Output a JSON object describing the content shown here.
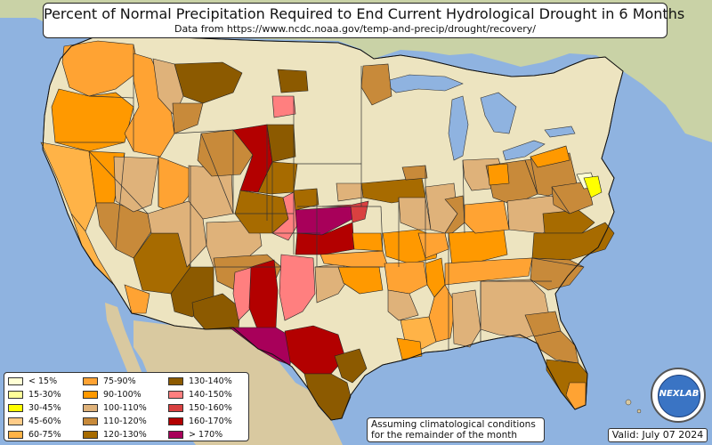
{
  "title": "Percent of Normal Precipitation Required to End Current Hydrological Drought in 6 Months",
  "subtitle": "Data from https://www.ncdc.noaa.gov/temp-and-precip/drought/recovery/",
  "legend": {
    "items": [
      {
        "label": "< 15%",
        "color": "#ffffd4"
      },
      {
        "label": "15-30%",
        "color": "#ffff99"
      },
      {
        "label": "30-45%",
        "color": "#ffff00"
      },
      {
        "label": "45-60%",
        "color": "#ffcc88"
      },
      {
        "label": "60-75%",
        "color": "#ffb347"
      },
      {
        "label": "75-90%",
        "color": "#ffa333"
      },
      {
        "label": "90-100%",
        "color": "#ff9900"
      },
      {
        "label": "100-110%",
        "color": "#dfb27a"
      },
      {
        "label": "110-120%",
        "color": "#c88a3a"
      },
      {
        "label": "120-130%",
        "color": "#a76b00"
      },
      {
        "label": "130-140%",
        "color": "#8c5a00"
      },
      {
        "label": "140-150%",
        "color": "#ff7f7f"
      },
      {
        "label": "150-160%",
        "color": "#d94040"
      },
      {
        "label": "160-170%",
        "color": "#b30000"
      },
      {
        "label": "> 170%",
        "color": "#a8005a"
      }
    ]
  },
  "note": {
    "line1": "Assuming climatological conditions",
    "line2": "for the remainder of the month"
  },
  "valid": "Valid: July 07 2024",
  "logo_text": "NEXLAB",
  "colors": {
    "ocean": "#8fb3e0",
    "land": "#ede4c0",
    "canada": "#c9d2a6",
    "mexico": "#d9c9a0",
    "lakes": "#8fb3e0"
  }
}
